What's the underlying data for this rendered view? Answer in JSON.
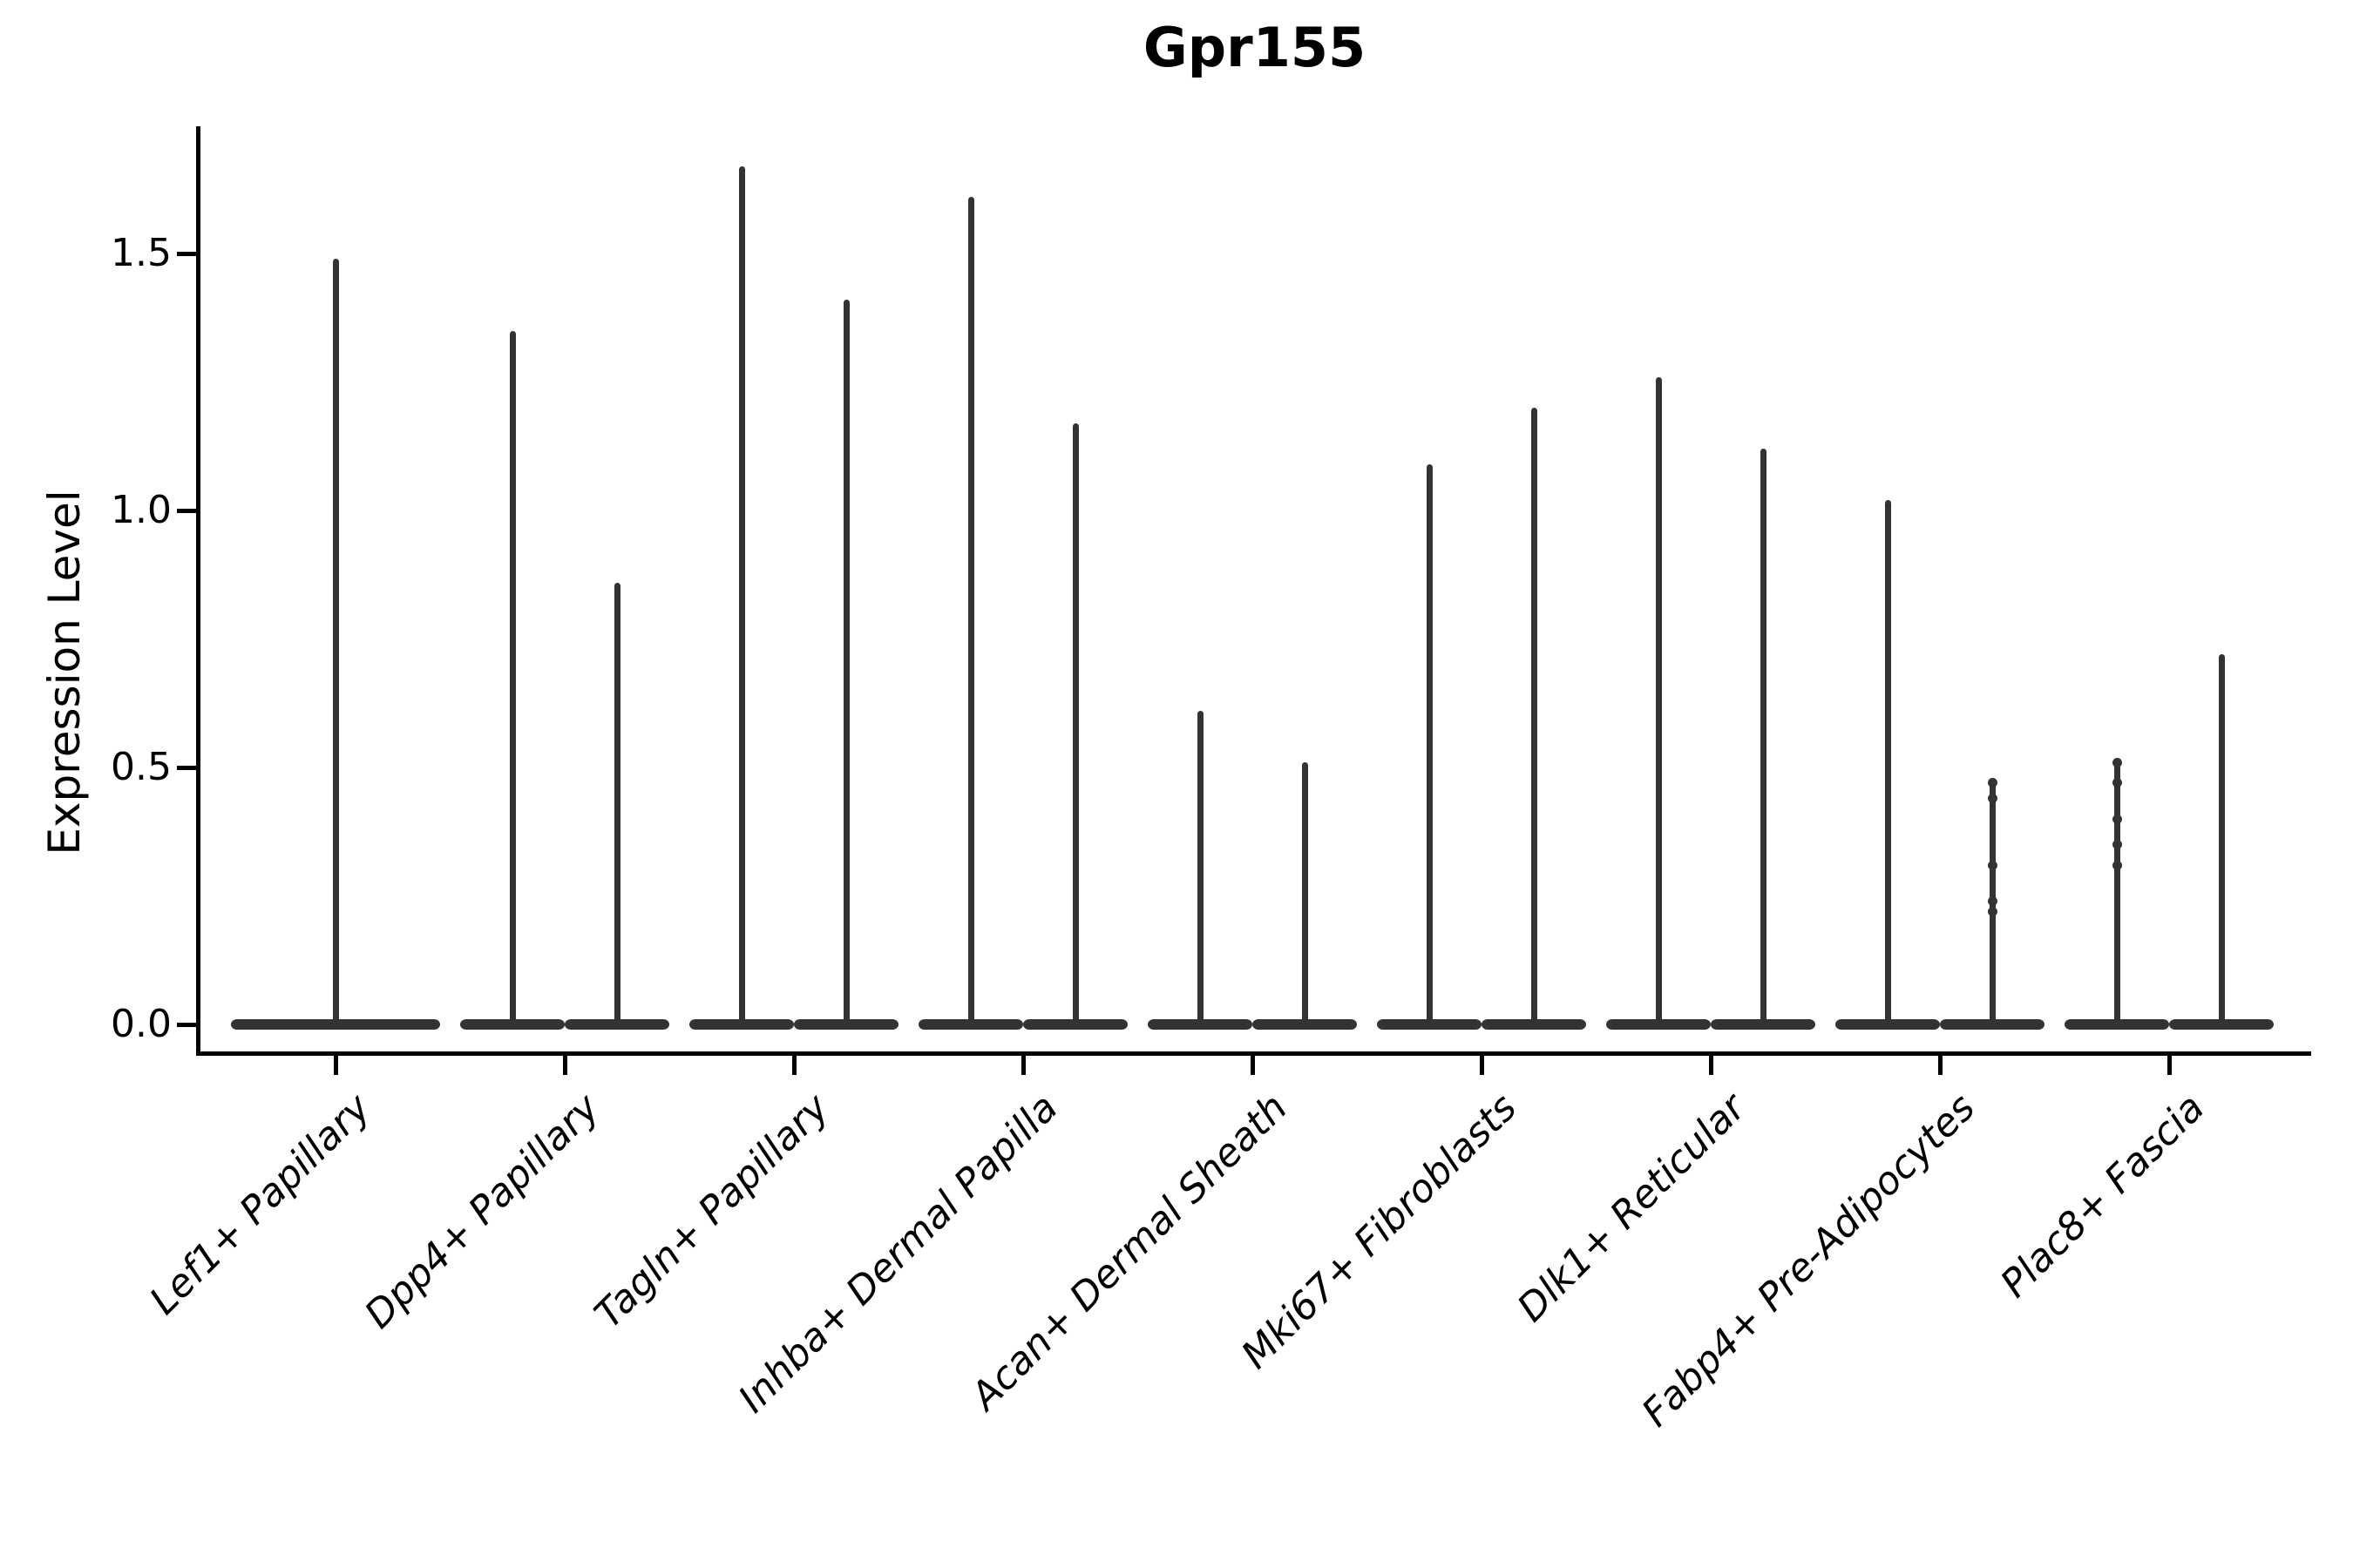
{
  "chart_data": {
    "type": "violin",
    "title": "Gpr155",
    "ylabel": "Expression Level",
    "xlabel": "",
    "grid": false,
    "legend_position": "none",
    "ylim": [
      -0.06,
      1.75
    ],
    "ytick_labels": [
      "0.0",
      "0.5",
      "1.0",
      "1.5"
    ],
    "ytick_values": [
      0.0,
      0.5,
      1.0,
      1.5
    ],
    "categories": [
      "Lef1+ Papillary",
      "Dpp4+ Papillary",
      "Tagln+ Papillary",
      "Inhba+ Dermal Papilla",
      "Acan+ Dermal Sheath",
      "Mki67+ Fibroblasts",
      "Dlk1+ Reticular",
      "Fabp4+ Pre-Adipocytes",
      "Plac8+ Fascia"
    ],
    "violins": [
      {
        "ci": 0,
        "category": "Lef1+ Papillary",
        "slot": "full",
        "baseline": 0.0,
        "max": 1.49
      },
      {
        "ci": 1,
        "category": "Dpp4+ Papillary",
        "slot": "left",
        "baseline": 0.0,
        "max": 1.35
      },
      {
        "ci": 1,
        "category": "Dpp4+ Papillary",
        "slot": "right",
        "baseline": 0.0,
        "max": 0.86
      },
      {
        "ci": 2,
        "category": "Tagln+ Papillary",
        "slot": "left",
        "baseline": 0.0,
        "max": 1.67
      },
      {
        "ci": 2,
        "category": "Tagln+ Papillary",
        "slot": "right",
        "baseline": 0.0,
        "max": 1.41
      },
      {
        "ci": 3,
        "category": "Inhba+ Dermal Papilla",
        "slot": "left",
        "baseline": 0.0,
        "max": 1.61
      },
      {
        "ci": 3,
        "category": "Inhba+ Dermal Papilla",
        "slot": "right",
        "baseline": 0.0,
        "max": 1.17
      },
      {
        "ci": 4,
        "category": "Acan+ Dermal Sheath",
        "slot": "left",
        "baseline": 0.0,
        "max": 0.61
      },
      {
        "ci": 4,
        "category": "Acan+ Dermal Sheath",
        "slot": "right",
        "baseline": 0.0,
        "max": 0.51
      },
      {
        "ci": 5,
        "category": "Mki67+ Fibroblasts",
        "slot": "left",
        "baseline": 0.0,
        "max": 1.09
      },
      {
        "ci": 5,
        "category": "Mki67+ Fibroblasts",
        "slot": "right",
        "baseline": 0.0,
        "max": 1.2
      },
      {
        "ci": 6,
        "category": "Dlk1+ Reticular",
        "slot": "left",
        "baseline": 0.0,
        "max": 1.26
      },
      {
        "ci": 6,
        "category": "Dlk1+ Reticular",
        "slot": "right",
        "baseline": 0.0,
        "max": 1.12
      },
      {
        "ci": 7,
        "category": "Fabp4+ Pre-Adipocytes",
        "slot": "left",
        "baseline": 0.0,
        "max": 1.02
      },
      {
        "ci": 7,
        "category": "Fabp4+ Pre-Adipocytes",
        "slot": "right",
        "baseline": 0.0,
        "max": 0.47,
        "points": [
          0.47,
          0.44,
          0.31,
          0.24,
          0.22
        ]
      },
      {
        "ci": 8,
        "category": "Plac8+ Fascia",
        "slot": "left",
        "baseline": 0.0,
        "max": 0.51,
        "points": [
          0.51,
          0.47,
          0.4,
          0.35,
          0.31
        ]
      },
      {
        "ci": 8,
        "category": "Plac8+ Fascia",
        "slot": "right",
        "baseline": 0.0,
        "max": 0.72
      }
    ],
    "colors": {
      "violin": "#333333",
      "axis": "#000000",
      "text": "#000000",
      "background": "#ffffff"
    }
  }
}
